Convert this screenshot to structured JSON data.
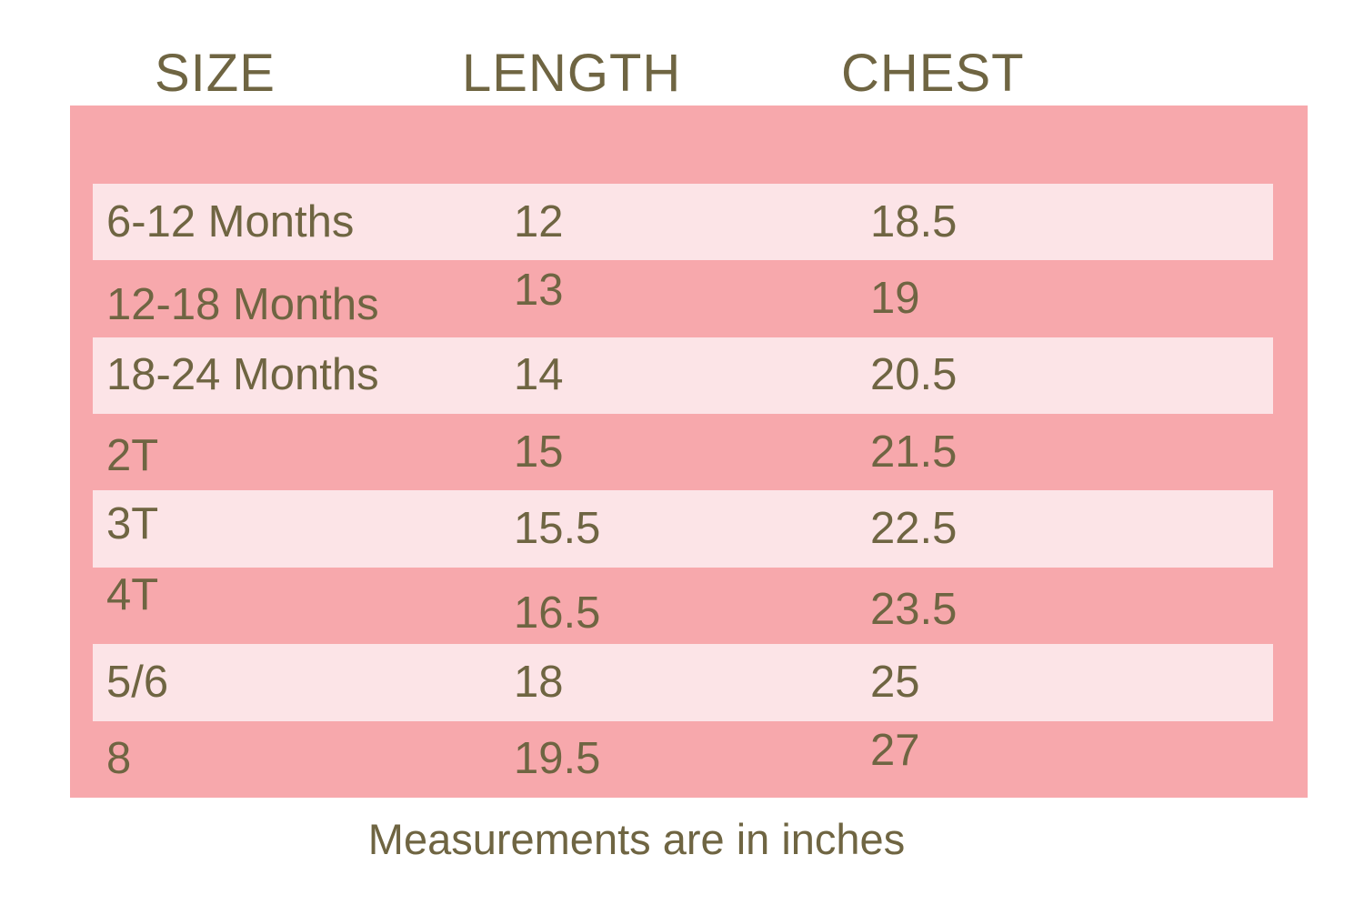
{
  "table": {
    "headers": [
      "SIZE",
      "LENGTH",
      "CHEST"
    ],
    "rows": [
      {
        "size": "6-12 Months",
        "length": "12",
        "chest": "18.5"
      },
      {
        "size": "12-18 Months",
        "length": "13",
        "chest": "19"
      },
      {
        "size": "18-24 Months",
        "length": "14",
        "chest": "20.5"
      },
      {
        "size": "2T",
        "length": "15",
        "chest": "21.5"
      },
      {
        "size": "3T",
        "length": "15.5",
        "chest": "22.5"
      },
      {
        "size": "4T",
        "length": "16.5",
        "chest": "23.5"
      },
      {
        "size": "5/6",
        "length": "18",
        "chest": "25"
      },
      {
        "size": "8",
        "length": "19.5",
        "chest": "27"
      }
    ]
  },
  "footer": {
    "note": "Measurements are in inches"
  },
  "colors": {
    "panel": "#F7A8AC",
    "row_light": "#FCE4E7",
    "text": "#6F6542",
    "background": "#FFFFFF"
  },
  "chart_data": {
    "type": "table",
    "title": "Size chart",
    "columns": [
      "SIZE",
      "LENGTH",
      "CHEST"
    ],
    "rows": [
      [
        "6-12 Months",
        12,
        18.5
      ],
      [
        "12-18 Months",
        13,
        19
      ],
      [
        "18-24 Months",
        14,
        20.5
      ],
      [
        "2T",
        15,
        21.5
      ],
      [
        "3T",
        15.5,
        22.5
      ],
      [
        "4T",
        16.5,
        23.5
      ],
      [
        "5/6",
        18,
        25
      ],
      [
        "8",
        19.5,
        27
      ]
    ],
    "units": "inches",
    "note": "Measurements are in inches",
    "layout": {
      "striped": true,
      "stripe_colors": [
        "#FCE4E7",
        "#F7A8AC"
      ],
      "header_outside_panel": true
    }
  }
}
